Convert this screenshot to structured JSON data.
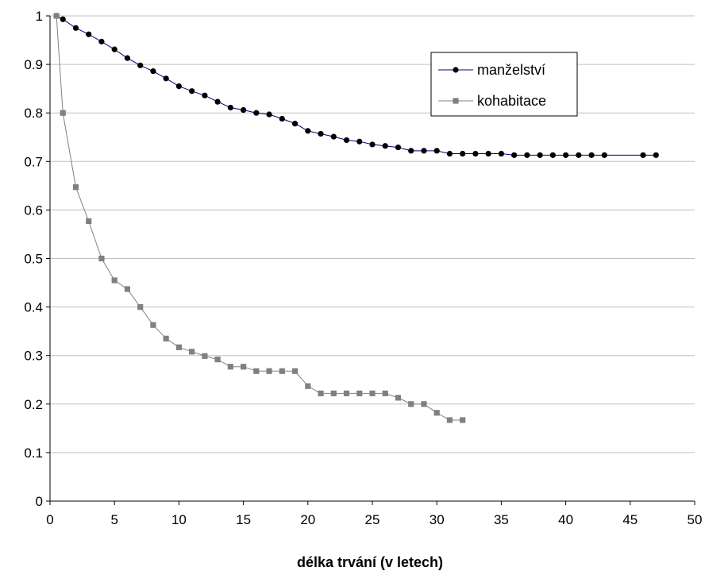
{
  "chart_data": {
    "type": "line",
    "title": "",
    "xlabel": "délka trvání (v letech)",
    "ylabel": "",
    "xlim": [
      0,
      50
    ],
    "ylim": [
      0,
      1
    ],
    "x_ticks": [
      "0",
      "5",
      "10",
      "15",
      "20",
      "25",
      "30",
      "35",
      "40",
      "45",
      "50"
    ],
    "y_ticks": [
      "0",
      "0.1",
      "0.2",
      "0.3",
      "0.4",
      "0.5",
      "0.6",
      "0.7",
      "0.8",
      "0.9",
      "1"
    ],
    "grid": "horizontal",
    "legend_position": "top-right",
    "series": [
      {
        "name": "manželství",
        "color": "#000080",
        "marker": "circle",
        "marker_color": "#000000",
        "x": [
          0.5,
          1,
          2,
          3,
          4,
          5,
          6,
          7,
          8,
          9,
          10,
          11,
          12,
          13,
          14,
          15,
          16,
          17,
          18,
          19,
          20,
          21,
          22,
          23,
          24,
          25,
          26,
          27,
          28,
          29,
          30,
          31,
          32,
          33,
          34,
          35,
          36,
          37,
          38,
          39,
          40,
          41,
          42,
          43,
          46,
          47
        ],
        "y": [
          1.0,
          0.993,
          0.975,
          0.962,
          0.947,
          0.931,
          0.913,
          0.898,
          0.886,
          0.871,
          0.855,
          0.845,
          0.836,
          0.823,
          0.811,
          0.806,
          0.8,
          0.797,
          0.788,
          0.778,
          0.763,
          0.757,
          0.751,
          0.744,
          0.741,
          0.735,
          0.732,
          0.729,
          0.722,
          0.722,
          0.722,
          0.716,
          0.716,
          0.716,
          0.716,
          0.716,
          0.713,
          0.713,
          0.713,
          0.713,
          0.713,
          0.713,
          0.713,
          0.713,
          0.713,
          0.713
        ]
      },
      {
        "name": "kohabitace",
        "color": "#808080",
        "marker": "square",
        "marker_color": "#808080",
        "x": [
          0.5,
          1,
          2,
          3,
          4,
          5,
          6,
          7,
          8,
          9,
          10,
          11,
          12,
          13,
          14,
          15,
          16,
          17,
          18,
          19,
          20,
          21,
          22,
          23,
          24,
          25,
          26,
          27,
          28,
          29,
          30,
          31,
          32
        ],
        "y": [
          1.0,
          0.8,
          0.647,
          0.577,
          0.5,
          0.455,
          0.437,
          0.4,
          0.363,
          0.335,
          0.317,
          0.308,
          0.299,
          0.292,
          0.277,
          0.277,
          0.268,
          0.268,
          0.268,
          0.268,
          0.237,
          0.222,
          0.222,
          0.222,
          0.222,
          0.222,
          0.222,
          0.213,
          0.2,
          0.2,
          0.182,
          0.167,
          0.167
        ]
      }
    ]
  }
}
